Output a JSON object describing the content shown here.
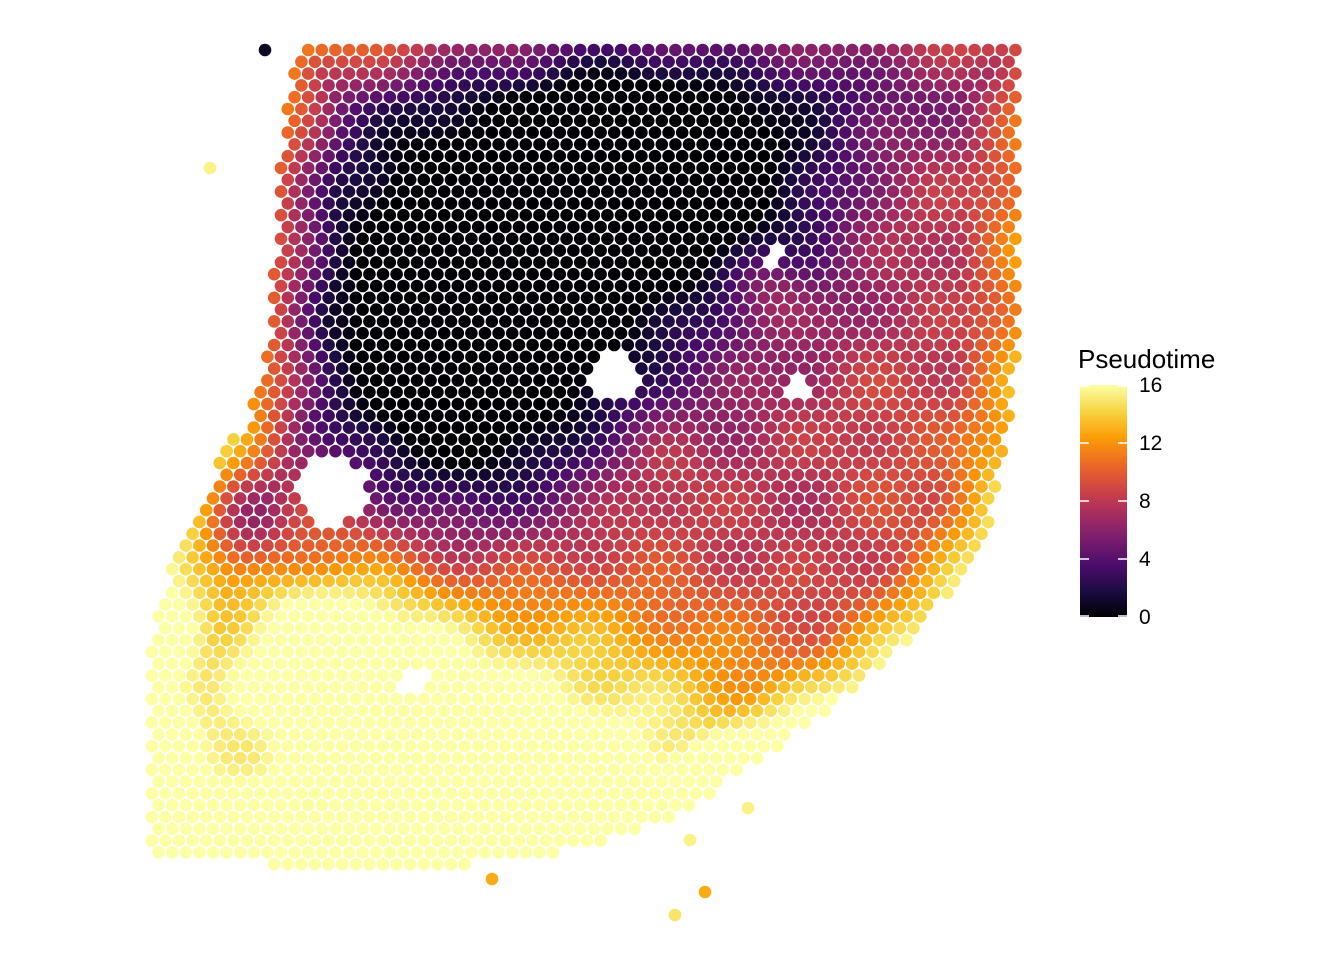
{
  "chart_data": {
    "type": "scatter",
    "title": "",
    "xlabel": "",
    "ylabel": "",
    "colorbar": {
      "title": "Pseudotime",
      "range": [
        0,
        16
      ],
      "ticks": [
        "0",
        "4",
        "8",
        "12",
        "16"
      ],
      "colormap": "inferno",
      "stops": [
        "#000004",
        "#1b0c41",
        "#4a0c6b",
        "#781c6d",
        "#a52c60",
        "#cf4446",
        "#ed6925",
        "#fb9b06",
        "#f7d13d",
        "#fcffa4"
      ]
    },
    "grid": false,
    "legend_position": "right",
    "note_series": "hexagonal grid of spots; each colored by pseudotime value"
  }
}
